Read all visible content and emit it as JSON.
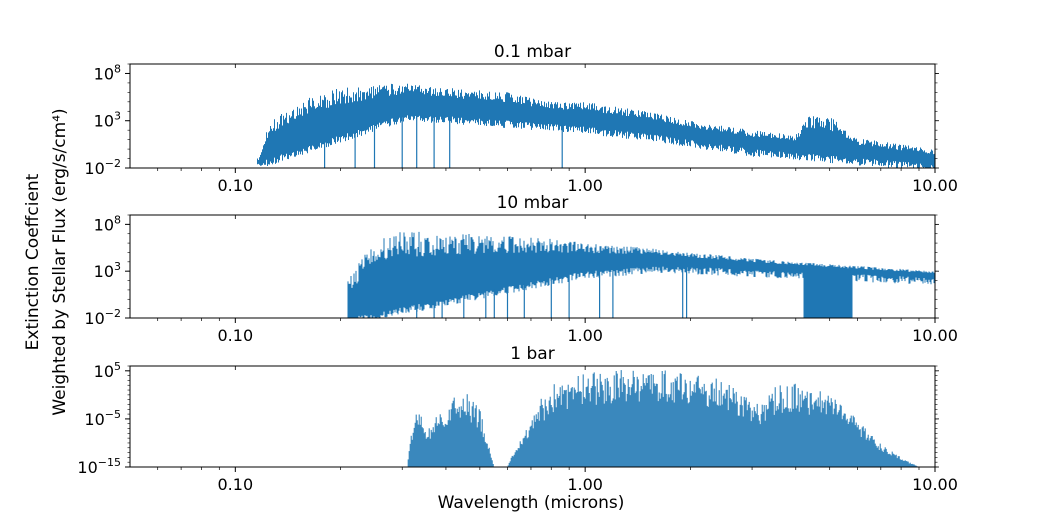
{
  "chart_data": {
    "type": "area",
    "ylabel_line1": "Extinction Coeffcient",
    "ylabel_line2": "Weighted by Stellar Flux (erg/s/cm⁴)",
    "xlabel": "Wavelength (microns)",
    "series_color": "#1f77b4",
    "x_scale": "log",
    "y_scale": "log",
    "xlim": [
      0.05,
      10.0
    ],
    "xticks": [
      {
        "value": 0.1,
        "label": "0.10"
      },
      {
        "value": 1.0,
        "label": "1.00"
      },
      {
        "value": 10.0,
        "label": "10.00"
      }
    ],
    "panels": [
      {
        "title": "0.1 mbar",
        "ylim_exp": [
          -2,
          9
        ],
        "yticks": [
          {
            "base": "10",
            "exp": "8",
            "value_exp": 8
          },
          {
            "base": "10",
            "exp": "3",
            "value_exp": 3
          },
          {
            "base": "10",
            "exp": "−2",
            "value_exp": -2
          }
        ],
        "envelope": [
          [
            0.115,
            -2
          ],
          [
            0.125,
            3
          ],
          [
            0.14,
            4
          ],
          [
            0.16,
            5.5
          ],
          [
            0.2,
            6.5
          ],
          [
            0.3,
            7
          ],
          [
            0.4,
            6.5
          ],
          [
            0.6,
            6
          ],
          [
            0.8,
            5
          ],
          [
            1.0,
            5
          ],
          [
            1.5,
            4
          ],
          [
            2.0,
            3
          ],
          [
            3.0,
            2
          ],
          [
            4.0,
            1.5
          ],
          [
            4.3,
            3.5
          ],
          [
            5.0,
            3.5
          ],
          [
            6.0,
            1.2
          ],
          [
            8.0,
            0.5
          ],
          [
            10.0,
            0
          ]
        ],
        "baseline": [
          [
            0.125,
            -1
          ],
          [
            0.3,
            3.6
          ],
          [
            0.4,
            3.5
          ],
          [
            1.0,
            2.4
          ],
          [
            1.6,
            1.5
          ],
          [
            3.0,
            0
          ],
          [
            10.0,
            -1.6
          ]
        ],
        "dips": [
          [
            0.18,
            -2
          ],
          [
            0.22,
            -2
          ],
          [
            0.25,
            -2
          ],
          [
            0.3,
            -2
          ],
          [
            0.33,
            -2
          ],
          [
            0.37,
            -2
          ],
          [
            0.41,
            -2
          ],
          [
            0.86,
            -2
          ]
        ]
      },
      {
        "title": "10 mbar",
        "ylim_exp": [
          -2,
          9
        ],
        "yticks": [
          {
            "base": "10",
            "exp": "8",
            "value_exp": 8
          },
          {
            "base": "10",
            "exp": "3",
            "value_exp": 3
          },
          {
            "base": "10",
            "exp": "−2",
            "value_exp": -2
          }
        ],
        "envelope": [
          [
            0.21,
            2
          ],
          [
            0.25,
            6.5
          ],
          [
            0.3,
            7.3
          ],
          [
            0.5,
            7
          ],
          [
            0.8,
            6.5
          ],
          [
            1.0,
            6
          ],
          [
            1.5,
            5.5
          ],
          [
            2.0,
            5
          ],
          [
            4.0,
            4
          ],
          [
            10.0,
            3
          ]
        ],
        "baseline": [
          [
            0.21,
            -2
          ],
          [
            1.0,
            3
          ],
          [
            1.7,
            3.6
          ],
          [
            10.0,
            2.3
          ]
        ],
        "dips": [
          [
            0.33,
            -2
          ],
          [
            0.37,
            -2
          ],
          [
            0.39,
            -2
          ],
          [
            0.45,
            -2
          ],
          [
            0.52,
            -2
          ],
          [
            0.55,
            -2
          ],
          [
            0.6,
            -2
          ],
          [
            0.67,
            -2
          ],
          [
            0.8,
            -2
          ],
          [
            0.9,
            -2
          ],
          [
            1.1,
            -2
          ],
          [
            1.2,
            -2
          ],
          [
            1.9,
            -2
          ],
          [
            1.95,
            -2
          ]
        ],
        "filled_band": [
          4.2,
          5.8
        ]
      },
      {
        "title": "1 bar",
        "ylim_exp": [
          -15,
          6
        ],
        "yticks": [
          {
            "base": "10",
            "exp": "5",
            "value_exp": 5
          },
          {
            "base": "10",
            "exp": "−5",
            "value_exp": -5
          },
          {
            "base": "10",
            "exp": "−15",
            "value_exp": -15
          }
        ],
        "envelope": [
          [
            0.31,
            -15
          ],
          [
            0.32,
            -7
          ],
          [
            0.33,
            -1
          ],
          [
            0.35,
            -8
          ],
          [
            0.38,
            -4
          ],
          [
            0.41,
            -1
          ],
          [
            0.45,
            1
          ],
          [
            0.5,
            -3
          ],
          [
            0.55,
            -15
          ],
          [
            0.6,
            -15
          ],
          [
            0.62,
            -12
          ],
          [
            0.67,
            -7
          ],
          [
            0.7,
            -5
          ],
          [
            0.73,
            -3
          ],
          [
            0.75,
            1
          ],
          [
            0.77,
            -1
          ],
          [
            0.8,
            2
          ],
          [
            0.85,
            3
          ],
          [
            1.0,
            4.5
          ],
          [
            1.3,
            5.5
          ],
          [
            1.6,
            5
          ],
          [
            1.7,
            6
          ],
          [
            2.0,
            4.5
          ],
          [
            2.5,
            3.5
          ],
          [
            2.8,
            0
          ],
          [
            3.2,
            -2
          ],
          [
            3.5,
            2
          ],
          [
            4.0,
            2.5
          ],
          [
            5.0,
            0.5
          ],
          [
            6.0,
            -5
          ],
          [
            7.0,
            -10
          ],
          [
            8.0,
            -13
          ],
          [
            9.0,
            -15
          ]
        ],
        "baseline": [
          [
            0.3,
            -15
          ],
          [
            10.0,
            -15
          ]
        ],
        "dips": []
      }
    ]
  }
}
